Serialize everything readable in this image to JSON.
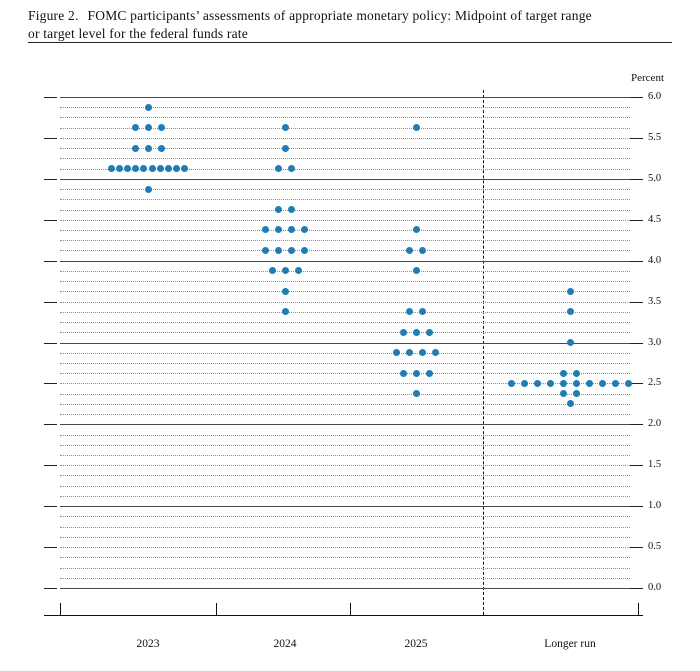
{
  "title": {
    "figure_label": "Figure 2.",
    "caption_line1": "FOMC participants’ assessments of appropriate monetary policy: Midpoint of target range",
    "caption_line2": "or target level for the federal funds rate"
  },
  "chart_data": {
    "type": "scatter",
    "variant": "fomc-dot-plot",
    "title": "FOMC participants’ assessments of appropriate monetary policy: Midpoint of target range or target level for the federal funds rate",
    "unit_label": "Percent",
    "ylim": [
      0.0,
      6.0
    ],
    "ytick_step": 0.5,
    "ytick_labels": [
      "6.0",
      "5.5",
      "5.0",
      "4.5",
      "4.0",
      "3.5",
      "3.0",
      "2.5",
      "2.0",
      "1.5",
      "1.0",
      "0.5",
      "0.0"
    ],
    "gridline_interval": 0.125,
    "solid_gridline_values": [
      0.0,
      1.0,
      2.0,
      3.0,
      4.0,
      5.0,
      6.0
    ],
    "dot_color": "#1f7db4",
    "categories": [
      "2023",
      "2024",
      "2025",
      "Longer run"
    ],
    "separator": {
      "after_category": "2025",
      "style": "dashed"
    },
    "columns": [
      {
        "label": "2023",
        "dots": [
          {
            "rate": 5.875,
            "count": 1
          },
          {
            "rate": 5.625,
            "count": 3
          },
          {
            "rate": 5.375,
            "count": 3
          },
          {
            "rate": 5.125,
            "count": 10
          },
          {
            "rate": 4.875,
            "count": 1
          }
        ]
      },
      {
        "label": "2024",
        "dots": [
          {
            "rate": 5.625,
            "count": 1
          },
          {
            "rate": 5.375,
            "count": 1
          },
          {
            "rate": 5.125,
            "count": 2
          },
          {
            "rate": 4.625,
            "count": 2
          },
          {
            "rate": 4.375,
            "count": 4
          },
          {
            "rate": 4.125,
            "count": 4
          },
          {
            "rate": 3.875,
            "count": 3
          },
          {
            "rate": 3.625,
            "count": 1
          },
          {
            "rate": 3.375,
            "count": 1
          }
        ]
      },
      {
        "label": "2025",
        "dots": [
          {
            "rate": 5.625,
            "count": 1
          },
          {
            "rate": 4.375,
            "count": 1
          },
          {
            "rate": 4.125,
            "count": 2
          },
          {
            "rate": 3.875,
            "count": 1
          },
          {
            "rate": 3.375,
            "count": 2
          },
          {
            "rate": 3.125,
            "count": 3
          },
          {
            "rate": 2.875,
            "count": 4
          },
          {
            "rate": 2.625,
            "count": 3
          },
          {
            "rate": 2.375,
            "count": 1
          }
        ]
      },
      {
        "label": "Longer run",
        "dots": [
          {
            "rate": 3.625,
            "count": 1
          },
          {
            "rate": 3.375,
            "count": 1
          },
          {
            "rate": 3.0,
            "count": 1
          },
          {
            "rate": 2.625,
            "count": 2
          },
          {
            "rate": 2.5,
            "count": 10
          },
          {
            "rate": 2.375,
            "count": 2
          },
          {
            "rate": 2.25,
            "count": 1
          }
        ]
      }
    ]
  }
}
